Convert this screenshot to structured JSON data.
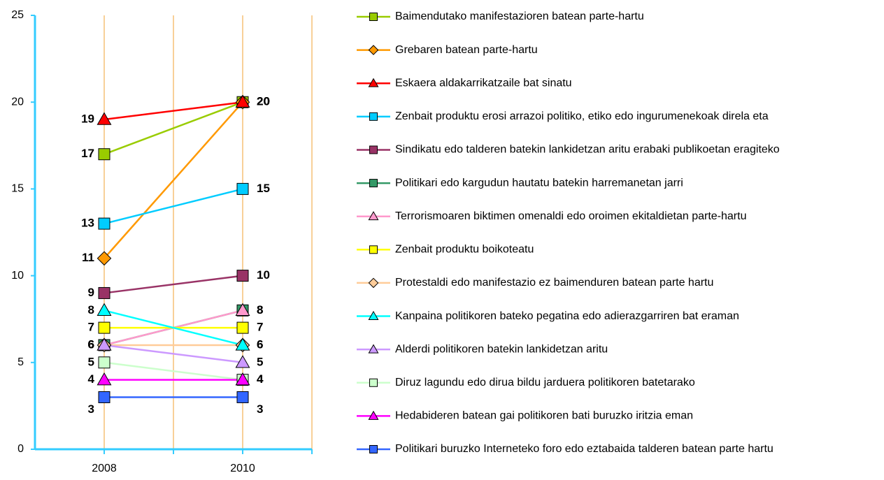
{
  "chart_data": {
    "type": "line",
    "x": [
      2008,
      2010
    ],
    "xlim": [
      2007,
      2011
    ],
    "xticks": [
      2008,
      2010
    ],
    "xgrid": [
      2008,
      2009,
      2010,
      2011
    ],
    "ylim": [
      0,
      25
    ],
    "yticks": [
      0,
      5,
      10,
      15,
      20,
      25
    ],
    "grid": true,
    "legend": "right",
    "series": [
      {
        "name": "Baimendutako manifestazioren batean parte-hartu",
        "color": "#99cc00",
        "marker": "square",
        "values": [
          17,
          20
        ]
      },
      {
        "name": "Grebaren batean parte-hartu",
        "color": "#ff9900",
        "marker": "diamond",
        "values": [
          11,
          20
        ]
      },
      {
        "name": "Eskaera aldakarrikatzaile bat sinatu",
        "color": "#ff0000",
        "marker": "triangle",
        "values": [
          19,
          20
        ]
      },
      {
        "name": "Zenbait produktu erosi arrazoi politiko, etiko edo ingurumenekoak direla eta",
        "color": "#00ccff",
        "marker": "square",
        "values": [
          13,
          15
        ]
      },
      {
        "name": "Sindikatu edo talderen batekin lankidetzan aritu erabaki publikoetan eragiteko",
        "color": "#993366",
        "marker": "square",
        "values": [
          9,
          10
        ]
      },
      {
        "name": "Politikari edo kargudun hautatu batekin harremanetan jarri",
        "color": "#339966",
        "marker": "square",
        "values": [
          6,
          8
        ]
      },
      {
        "name": "Terrorismoaren biktimen omenaldi edo oroimen ekitaldietan parte-hartu",
        "color": "#ff99cc",
        "marker": "triangle",
        "values": [
          6,
          8
        ]
      },
      {
        "name": "Zenbait produktu boikoteatu",
        "color": "#ffff00",
        "marker": "square",
        "values": [
          7,
          7
        ]
      },
      {
        "name": "Protestaldi edo manifestazio ez baimenduren batean parte hartu",
        "color": "#ffcc99",
        "marker": "diamond",
        "values": [
          6,
          6
        ]
      },
      {
        "name": "Kanpaina politikoren bateko pegatina edo adierazgarriren bat eraman",
        "color": "#00ffff",
        "marker": "triangle",
        "values": [
          8,
          6
        ]
      },
      {
        "name": "Alderdi politikoren batekin lankidetzan aritu",
        "color": "#cc99ff",
        "marker": "triangle",
        "values": [
          6,
          5
        ]
      },
      {
        "name": "Diruz lagundu edo dirua bildu jarduera politikoren batetarako",
        "color": "#ccffcc",
        "marker": "square",
        "values": [
          5,
          4
        ]
      },
      {
        "name": "Hedabideren batean gai politikoren bati buruzko iritzia eman",
        "color": "#ff00ff",
        "marker": "triangle",
        "values": [
          4,
          4
        ]
      },
      {
        "name": "Politikari buruzko Interneteko foro edo eztabaida talderen batean parte hartu",
        "color": "#3366ff",
        "marker": "square",
        "values": [
          3,
          3
        ]
      }
    ]
  }
}
